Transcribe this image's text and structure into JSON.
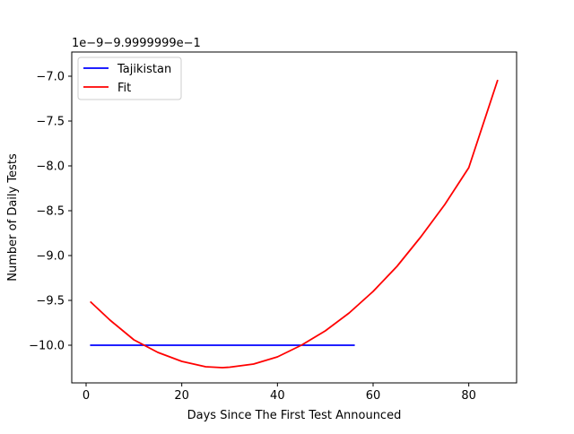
{
  "chart_data": {
    "type": "line",
    "title": "",
    "xlabel": "Days Since The First Test Announced",
    "ylabel": "Number of Daily Tests",
    "offset_text": "1e−9−9.9999999e−1",
    "xlim": [
      -3,
      90
    ],
    "ylim": [
      -10.42,
      -6.73
    ],
    "xticks": [
      0,
      20,
      40,
      60,
      80
    ],
    "xtick_labels": [
      "0",
      "20",
      "40",
      "60",
      "80"
    ],
    "yticks": [
      -10.0,
      -9.5,
      -9.0,
      -8.5,
      -8.0,
      -7.5,
      -7.0
    ],
    "ytick_labels": [
      "−10.0",
      "−9.5",
      "−9.0",
      "−8.5",
      "−8.0",
      "−7.5",
      "−7.0"
    ],
    "grid": false,
    "legend": {
      "position": "top-left"
    },
    "series": [
      {
        "name": "Tajikistan",
        "color": "#0000ff",
        "x": [
          1,
          56
        ],
        "y": [
          -10.0,
          -10.0
        ]
      },
      {
        "name": "Fit",
        "color": "#ff0000",
        "x": [
          1,
          5,
          10,
          15,
          20,
          25,
          28.5,
          30,
          35,
          40,
          45,
          50,
          55,
          60,
          65,
          70,
          75,
          80,
          86
        ],
        "y": [
          -9.52,
          -9.72,
          -9.94,
          -10.08,
          -10.18,
          -10.24,
          -10.25,
          -10.245,
          -10.21,
          -10.13,
          -10.0,
          -9.84,
          -9.64,
          -9.4,
          -9.12,
          -8.79,
          -8.43,
          -8.02,
          -7.05
        ]
      }
    ]
  }
}
